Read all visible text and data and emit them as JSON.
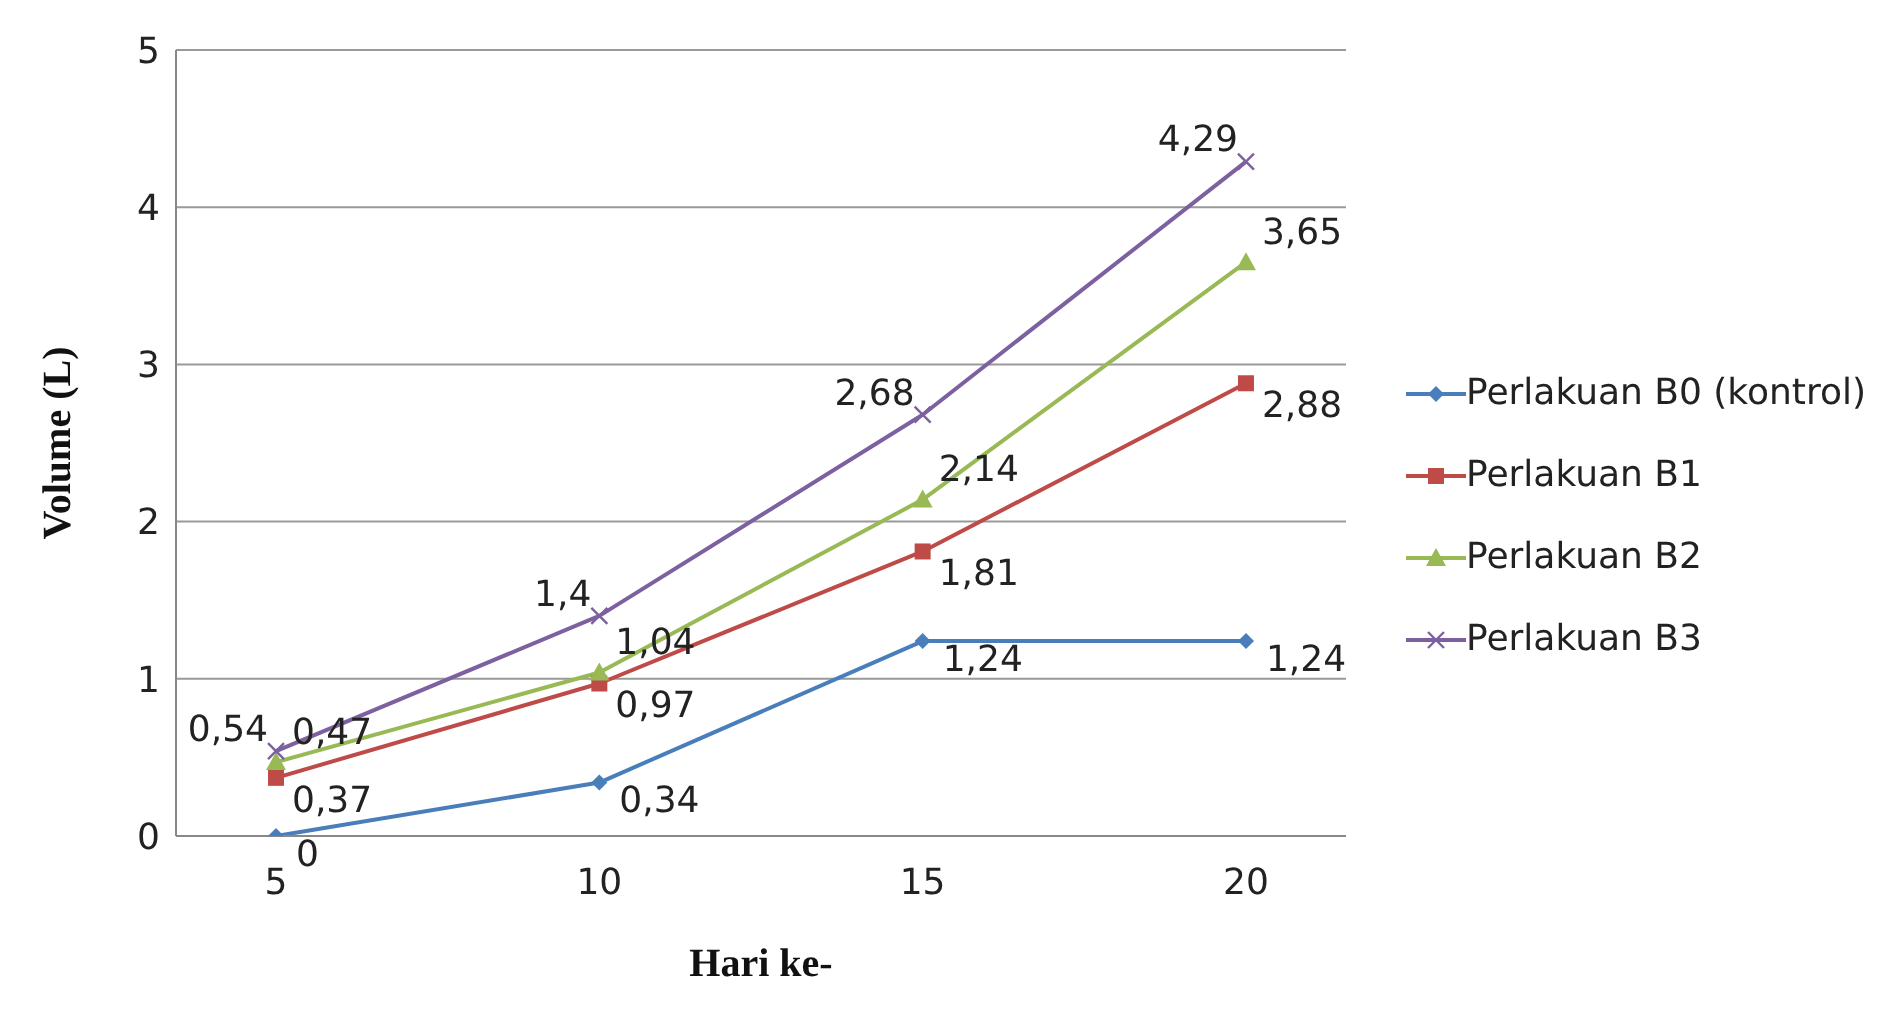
{
  "chart_data": {
    "type": "line",
    "xlabel": "Hari ke-",
    "ylabel": "Volume (L)",
    "categories": [
      "5",
      "10",
      "15",
      "20"
    ],
    "series": [
      {
        "name": "Perlakuan B0 (kontrol)",
        "color": "#4a7ebb",
        "marker": "diamond",
        "values": [
          0,
          0.34,
          1.24,
          1.24
        ],
        "value_labels": [
          "0",
          "0,34",
          "1,24",
          "1,24"
        ]
      },
      {
        "name": "Perlakuan B1",
        "color": "#be4b48",
        "marker": "square",
        "values": [
          0.37,
          0.97,
          1.81,
          2.88
        ],
        "value_labels": [
          "0,37",
          "0,97",
          "1,81",
          "2,88"
        ]
      },
      {
        "name": "Perlakuan B2",
        "color": "#98b954",
        "marker": "triangle",
        "values": [
          0.47,
          1.04,
          2.14,
          3.65
        ],
        "value_labels": [
          "0,47",
          "1,04",
          "2,14",
          "3,65"
        ]
      },
      {
        "name": "Perlakuan B3",
        "color": "#7d60a0",
        "marker": "cross",
        "values": [
          0.54,
          1.4,
          2.68,
          4.29
        ],
        "value_labels": [
          "0,54",
          "1,4",
          "2,68",
          "4,29"
        ]
      }
    ],
    "ylim": [
      0,
      5
    ],
    "yticks": [
      0,
      1,
      2,
      3,
      4,
      5
    ],
    "grid": "y",
    "legend": "right",
    "line_style": "solid"
  }
}
